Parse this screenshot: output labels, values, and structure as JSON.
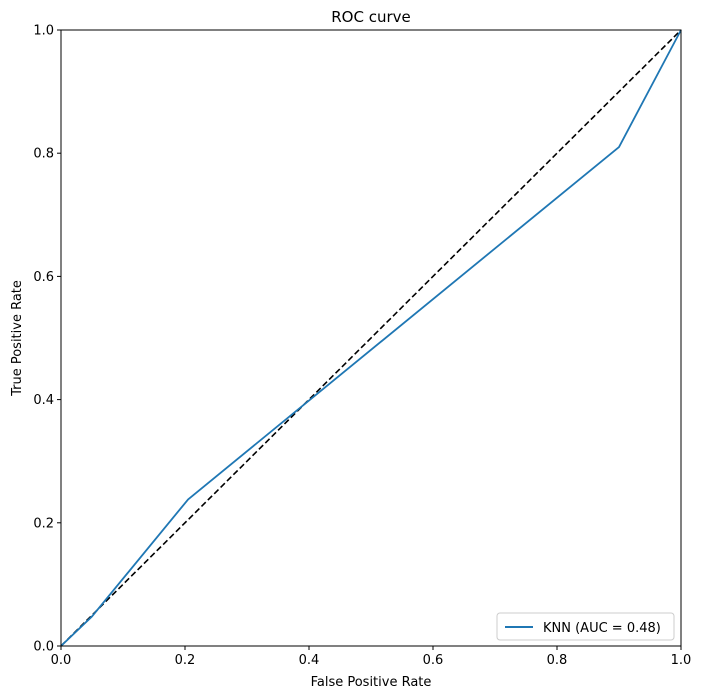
{
  "chart_data": {
    "type": "line",
    "title": "ROC curve",
    "xlabel": "False Positive Rate",
    "ylabel": "True Positive Rate",
    "xlim": [
      0.0,
      1.0
    ],
    "ylim": [
      0.0,
      1.0
    ],
    "xticks": [
      "0.0",
      "0.2",
      "0.4",
      "0.6",
      "0.8",
      "1.0"
    ],
    "yticks": [
      "0.0",
      "0.2",
      "0.4",
      "0.6",
      "0.8",
      "1.0"
    ],
    "grid": false,
    "legend_position": "lower right",
    "series": [
      {
        "name": "KNN (AUC = 0.48)",
        "color": "#1f77b4",
        "style": "solid",
        "x": [
          0.0,
          0.05,
          0.205,
          0.9,
          1.0
        ],
        "y": [
          0.0,
          0.048,
          0.238,
          0.81,
          1.0
        ]
      }
    ],
    "reference_line": {
      "color": "#000000",
      "style": "dashed",
      "x": [
        0.0,
        1.0
      ],
      "y": [
        0.0,
        1.0
      ]
    }
  }
}
